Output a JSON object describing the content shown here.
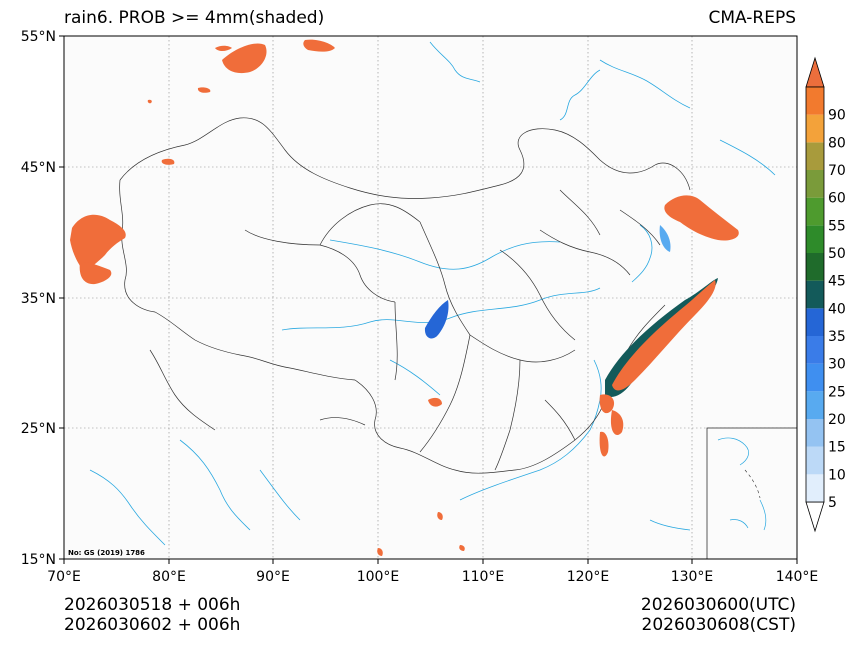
{
  "header": {
    "title_left": "rain6. PROB >= 4mm(shaded)",
    "title_right": "CMA-REPS"
  },
  "axes": {
    "lat_labels": [
      "55°N",
      "45°N",
      "35°N",
      "25°N",
      "15°N"
    ],
    "lon_labels": [
      "70°E",
      "80°E",
      "90°E",
      "100°E",
      "110°E",
      "120°E",
      "130°E",
      "140°E"
    ]
  },
  "map": {
    "extent_lon": [
      70,
      140
    ],
    "extent_lat": [
      15,
      55
    ],
    "review_number": "No: GS (2019) 1786",
    "colors": {
      "background": "#fbfbfb",
      "border": "#333333",
      "water": "#29a8e0",
      "prob_high": "#f06d3a"
    }
  },
  "colorbar": {
    "levels": [
      "5",
      "10",
      "15",
      "20",
      "25",
      "30",
      "35",
      "40",
      "45",
      "50",
      "55",
      "60",
      "70",
      "80",
      "90"
    ],
    "colors": [
      "#e1eefc",
      "#bcd9f7",
      "#94c3f2",
      "#58aaf0",
      "#3f8ff0",
      "#3a7ce8",
      "#2566d6",
      "#135a5a",
      "#1f6b2b",
      "#2e8b2a",
      "#4e9b2e",
      "#7a9b3a",
      "#a89b3c",
      "#f3a23a",
      "#f27a2e"
    ]
  },
  "footer": {
    "init_utc": "2026030518  +  006h",
    "init_cst": "2026030602  +  006h",
    "valid_utc": "2026030600(UTC)",
    "valid_cst": "2026030608(CST)"
  }
}
